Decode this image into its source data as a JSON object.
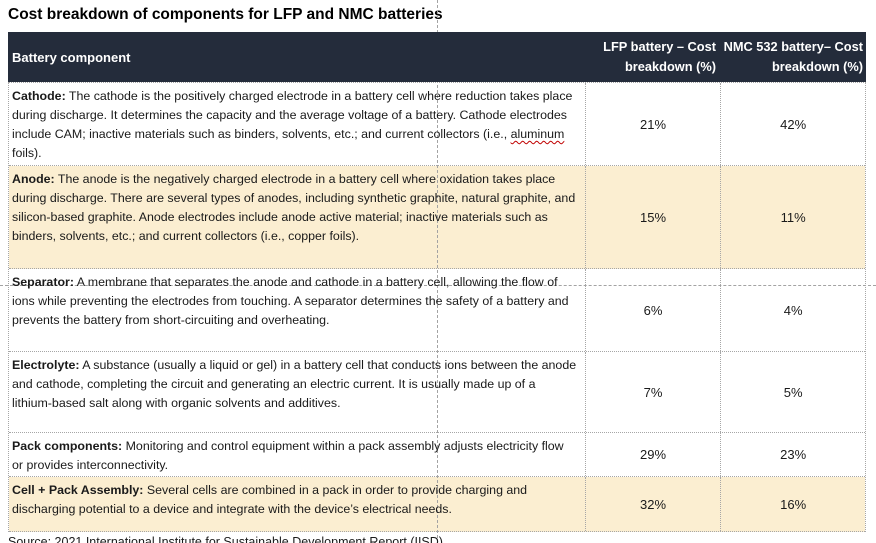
{
  "title": "Cost breakdown of components for LFP and NMC batteries",
  "table": {
    "header": {
      "component": "Battery component",
      "lfp": "LFP battery – Cost breakdown (%)",
      "nmc": "NMC 532 battery– Cost breakdown (%)"
    },
    "rows": [
      {
        "term": "Cathode:",
        "before": " The cathode is the positively charged electrode in a battery cell where reduction takes place during discharge. It determines the capacity and the average voltage of a battery. Cathode electrodes include CAM; inactive materials such as binders, solvents, etc.; and current collectors (i.e., ",
        "squiggle": "aluminum",
        "after": " foils).",
        "lfp": "21%",
        "nmc": "42%",
        "highlight": false
      },
      {
        "term": "Anode:",
        "before": " The anode is the negatively charged electrode in a battery cell where oxidation takes place during discharge. There are several types of anodes, including synthetic graphite, natural graphite, and silicon-based graphite. Anode electrodes include anode active material; inactive materials such as binders, solvents, etc.; and current collectors (i.e., copper foils).",
        "squiggle": "",
        "after": "",
        "lfp": "15%",
        "nmc": "11%",
        "highlight": true
      },
      {
        "term": "Separator:",
        "before": " A membrane that separates the anode and cathode in a battery cell, allowing the flow of ions while preventing the electrodes from touching. A separator determines the safety of a battery and prevents the battery from short-circuiting and overheating.",
        "squiggle": "",
        "after": "",
        "lfp": "6%",
        "nmc": "4%",
        "highlight": false
      },
      {
        "term": "Electrolyte:",
        "before": " A substance (usually a liquid or gel) in a battery cell that conducts ions between the anode and cathode, completing the circuit and generating an electric current. It is usually made up of a lithium-based salt along with organic solvents and additives.",
        "squiggle": "",
        "after": "",
        "lfp": "7%",
        "nmc": "5%",
        "highlight": false
      },
      {
        "term": "Pack components:",
        "before": " Monitoring and control equipment within a pack assembly adjusts electricity flow or provides interconnectivity.",
        "squiggle": "",
        "after": "",
        "lfp": "29%",
        "nmc": "23%",
        "highlight": false
      },
      {
        "term": "Cell + Pack Assembly:",
        "before": " Several cells are combined in a pack in order to provide charging and discharging potential to a device and integrate with the device’s electrical needs.",
        "squiggle": "",
        "after": "",
        "lfp": "32%",
        "nmc": "16%",
        "highlight": true
      }
    ]
  },
  "source_note": "Source: 2021 International Institute for Sustainable Development Report (IISD)",
  "chart_data": {
    "type": "table",
    "title": "Cost breakdown of components for LFP and NMC batteries",
    "columns": [
      "Battery component",
      "LFP battery – Cost breakdown (%)",
      "NMC 532 battery– Cost breakdown (%)"
    ],
    "rows": [
      [
        "Cathode",
        21,
        42
      ],
      [
        "Anode",
        15,
        11
      ],
      [
        "Separator",
        6,
        4
      ],
      [
        "Electrolyte",
        7,
        5
      ],
      [
        "Pack components",
        29,
        23
      ],
      [
        "Cell + Pack Assembly",
        32,
        16
      ]
    ]
  },
  "colors": {
    "header_background": "#242C3B",
    "header_text": "#FFFFFF",
    "highlight_row": "#FBEED1",
    "body_text": "#1A1A1A",
    "dotted_border": "#A6A6A6",
    "guide_dash": "#A3A3A3",
    "spellcheck_squiggle": "#C00000"
  }
}
